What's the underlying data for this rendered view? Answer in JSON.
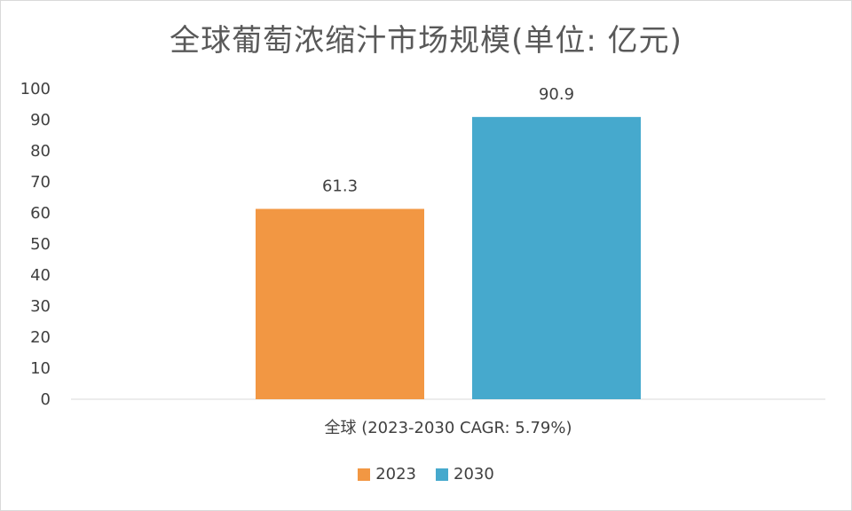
{
  "chart_data": {
    "type": "bar",
    "title": "全球葡萄浓缩汁市场规模(单位: 亿元)",
    "categories": [
      "全球 (2023-2030 CAGR: 5.79%)"
    ],
    "series": [
      {
        "name": "2023",
        "values": [
          61.3
        ],
        "color": "#F29743"
      },
      {
        "name": "2030",
        "values": [
          90.9
        ],
        "color": "#46A9CD"
      }
    ],
    "ylim": [
      0,
      100
    ],
    "yticks": [
      "0",
      "10",
      "20",
      "30",
      "40",
      "50",
      "60",
      "70",
      "80",
      "90",
      "100"
    ],
    "data_labels": [
      "61.3",
      "90.9"
    ],
    "grid": false,
    "legend": "bottom"
  }
}
